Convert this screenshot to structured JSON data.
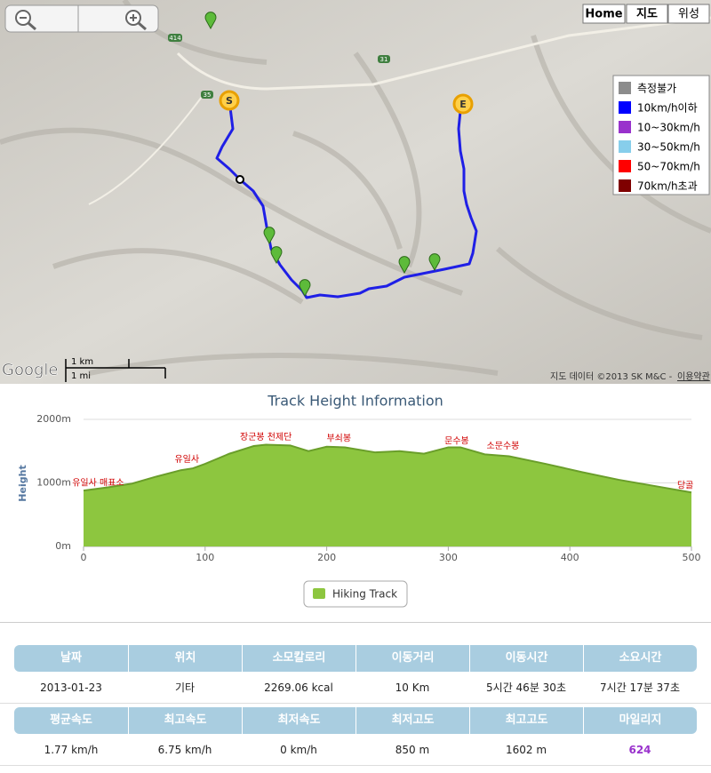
{
  "map": {
    "buttons": [
      "Home",
      "지도",
      "위성"
    ],
    "start": "S",
    "end": "E",
    "roads": [
      "414",
      "35",
      "31"
    ],
    "legend": [
      {
        "name": "측정불가",
        "color": "#8c8c8c"
      },
      {
        "name": "10km/h이하",
        "color": "#0000ff"
      },
      {
        "name": "10~30km/h",
        "color": "#9932cc"
      },
      {
        "name": "30~50km/h",
        "color": "#87ceeb"
      },
      {
        "name": "50~70km/h",
        "color": "#ff0000"
      },
      {
        "name": "70km/h초과",
        "color": "#7f0000"
      }
    ],
    "scale_km": "1 km",
    "scale_mi": "1 mi",
    "logo": "Google",
    "attribution": "지도 데이터 ©2013 SK M&C -",
    "terms": "이용약관"
  },
  "chart_data": {
    "type": "area",
    "title": "Track Height Information",
    "y_label": "Height",
    "x": [
      0,
      20,
      40,
      60,
      80,
      90,
      100,
      120,
      140,
      150,
      170,
      185,
      200,
      215,
      240,
      260,
      280,
      300,
      310,
      330,
      350,
      380,
      410,
      440,
      470,
      500
    ],
    "series": [
      {
        "name": "Hiking Track",
        "color": "#8dc63f",
        "values": [
          880,
          930,
          990,
          1100,
          1200,
          1230,
          1300,
          1460,
          1580,
          1602,
          1590,
          1500,
          1570,
          1560,
          1480,
          1500,
          1460,
          1560,
          1560,
          1450,
          1420,
          1300,
          1170,
          1050,
          950,
          850
        ]
      }
    ],
    "xlim": [
      0,
      500
    ],
    "xticks": [
      0,
      100,
      200,
      300,
      400,
      500
    ],
    "ylim": [
      0,
      2000
    ],
    "yticks": [
      {
        "value": 0,
        "label": "0m"
      },
      {
        "value": 1000,
        "label": "1000m"
      },
      {
        "value": 2000,
        "label": "2000m"
      }
    ],
    "grid": true,
    "annotations": [
      {
        "x": 12,
        "y": 1000,
        "text": "유일사 매표소"
      },
      {
        "x": 85,
        "y": 1370,
        "text": "유일사"
      },
      {
        "x": 150,
        "y": 1720,
        "text": "장군봉 천제단"
      },
      {
        "x": 210,
        "y": 1700,
        "text": "부쇠봉"
      },
      {
        "x": 307,
        "y": 1660,
        "text": "문수봉"
      },
      {
        "x": 345,
        "y": 1580,
        "text": "소문수봉"
      },
      {
        "x": 495,
        "y": 960,
        "text": "당골"
      }
    ],
    "legend": "bottom"
  },
  "table": {
    "headers": [
      [
        "날짜",
        "위치",
        "소모칼로리",
        "이동거리",
        "이동시간",
        "소요시간"
      ],
      [
        "평균속도",
        "최고속도",
        "최저속도",
        "최저고도",
        "최고고도",
        "마일리지"
      ]
    ],
    "rows": [
      [
        "2013-01-23",
        "기타",
        "2269.06 kcal",
        "10 Km",
        "5시간 46분 30초",
        "7시간 17분 37초"
      ],
      [
        "1.77 km/h",
        "6.75 km/h",
        "0 km/h",
        "850 m",
        "1602 m",
        "624"
      ]
    ],
    "accent_color": "#9932cc"
  }
}
